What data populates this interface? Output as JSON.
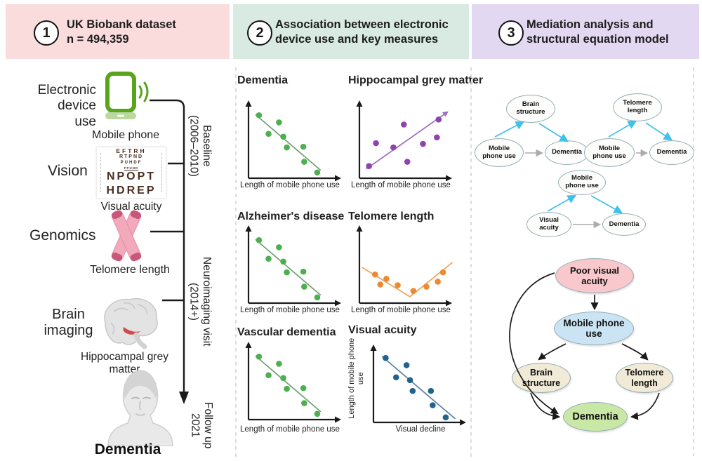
{
  "header": {
    "panels": [
      {
        "number": "1",
        "line1": "UK Biobank dataset",
        "line2": "n = 494,359",
        "bg": "#fbdcdc"
      },
      {
        "number": "2",
        "line1": "Association between electronic",
        "line2": "device use and key measures",
        "bg": "#d8eae1"
      },
      {
        "number": "3",
        "line1": "Mediation analysis and",
        "line2": "structural equation model",
        "bg": "#e3d8f2"
      }
    ]
  },
  "left_panel": {
    "electronic": {
      "label_lines": [
        "Electronic",
        "device",
        "use"
      ],
      "caption": "Mobile phone"
    },
    "vision": {
      "label": "Vision",
      "caption": "Visual acuity",
      "chart_rows": [
        "EFTRH",
        "RTPND",
        "PUHDF",
        "FPUND",
        "NPOPT",
        "HDREP"
      ]
    },
    "genomics": {
      "label": "Genomics",
      "caption": "Telomere length"
    },
    "brain": {
      "label_lines": [
        "Brain",
        "imaging"
      ],
      "caption": "Hippocampal grey matter"
    },
    "outcome": {
      "label": "Dementia"
    }
  },
  "timeline": {
    "baseline": {
      "line1": "Baseline",
      "line2": "(2006–2010)"
    },
    "neuroimaging": {
      "line1": "Neuroimaging visit",
      "line2": "(2014+)"
    },
    "followup": {
      "line1": "Follow up",
      "line2": "2021"
    }
  },
  "chart_data": [
    {
      "type": "scatter",
      "title": "Dementia",
      "xlabel": "Length of mobile phone use",
      "ylabel": "",
      "trend": "negative",
      "dot_color": "#4caf50",
      "line_color": "#6fa06f",
      "trend_arrow": false,
      "units": "schematic, relative 0-100",
      "x_range": [
        0,
        100
      ],
      "y_range": [
        0,
        100
      ],
      "points": [
        [
          12,
          88
        ],
        [
          35,
          78
        ],
        [
          23,
          62
        ],
        [
          40,
          58
        ],
        [
          44,
          43
        ],
        [
          63,
          44
        ],
        [
          64,
          23
        ],
        [
          79,
          8
        ]
      ],
      "trend_line": [
        [
          8,
          89
        ],
        [
          83,
          11
        ]
      ]
    },
    {
      "type": "scatter",
      "title": "Hippocampal grey matter",
      "xlabel": "Length of mobile phone use",
      "ylabel": "",
      "trend": "positive",
      "dot_color": "#8e44ad",
      "line_color": "#9d6bbf",
      "trend_arrow": true,
      "units": "schematic, relative 0-100",
      "x_range": [
        0,
        100
      ],
      "y_range": [
        0,
        100
      ],
      "points": [
        [
          11,
          17
        ],
        [
          19,
          49
        ],
        [
          39,
          43
        ],
        [
          51,
          75
        ],
        [
          55,
          23
        ],
        [
          73,
          48
        ],
        [
          89,
          57
        ],
        [
          91,
          82
        ]
      ],
      "trend_line": [
        [
          8,
          13
        ],
        [
          97,
          89
        ]
      ]
    },
    {
      "type": "scatter",
      "title": "Alzheimer's disease",
      "xlabel": "Length of mobile phone use",
      "ylabel": "",
      "trend": "negative",
      "dot_color": "#4caf50",
      "line_color": "#6fa06f",
      "trend_arrow": false,
      "units": "schematic, relative 0-100",
      "x_range": [
        0,
        100
      ],
      "y_range": [
        0,
        100
      ],
      "points": [
        [
          12,
          88
        ],
        [
          35,
          78
        ],
        [
          23,
          62
        ],
        [
          40,
          58
        ],
        [
          44,
          43
        ],
        [
          63,
          44
        ],
        [
          64,
          23
        ],
        [
          79,
          8
        ]
      ],
      "trend_line": [
        [
          8,
          89
        ],
        [
          83,
          11
        ]
      ]
    },
    {
      "type": "scatter",
      "title": "Telomere length",
      "xlabel": "Length of mobile phone use",
      "ylabel": "",
      "trend": "v-shaped",
      "dot_color": "#ec8a33",
      "line_color": "#f2a25a",
      "trend_arrow": false,
      "units": "schematic, relative 0-100",
      "x_range": [
        0,
        100
      ],
      "y_range": [
        0,
        100
      ],
      "points": [
        [
          18,
          40
        ],
        [
          24,
          26
        ],
        [
          31,
          34
        ],
        [
          44,
          25
        ],
        [
          62,
          17
        ],
        [
          77,
          23
        ],
        [
          90,
          30
        ],
        [
          96,
          43
        ]
      ],
      "trend_line": [
        [
          3,
          50
        ],
        [
          58,
          9
        ],
        [
          107,
          57
        ]
      ]
    },
    {
      "type": "scatter",
      "title": "Vascular dementia",
      "xlabel": "Length of mobile phone use",
      "ylabel": "",
      "trend": "negative",
      "dot_color": "#4caf50",
      "line_color": "#6fa06f",
      "trend_arrow": false,
      "units": "schematic, relative 0-100",
      "x_range": [
        0,
        100
      ],
      "y_range": [
        0,
        100
      ],
      "points": [
        [
          12,
          88
        ],
        [
          35,
          78
        ],
        [
          23,
          62
        ],
        [
          40,
          58
        ],
        [
          44,
          43
        ],
        [
          63,
          44
        ],
        [
          64,
          23
        ],
        [
          79,
          8
        ]
      ],
      "trend_line": [
        [
          8,
          89
        ],
        [
          83,
          11
        ]
      ]
    },
    {
      "type": "scatter",
      "title": "Visual acuity",
      "xlabel": "Visual decline",
      "ylabel": "Length of mobile phone use",
      "trend": "negative",
      "dot_color": "#20638f",
      "line_color": "#5c7fa3",
      "trend_arrow": false,
      "units": "schematic, relative 0-100",
      "x_range": [
        0,
        100
      ],
      "y_range": [
        0,
        100
      ],
      "points": [
        [
          14,
          90
        ],
        [
          38,
          80
        ],
        [
          26,
          63
        ],
        [
          42,
          59
        ],
        [
          45,
          44
        ],
        [
          66,
          44
        ],
        [
          68,
          24
        ],
        [
          83,
          7
        ]
      ],
      "trend_line": [
        [
          10,
          92
        ],
        [
          94,
          5
        ]
      ]
    }
  ],
  "sem": {
    "diagram_brain": {
      "top": "Brain structure",
      "left": "Mobile phone use",
      "right": "Dementia"
    },
    "diagram_telomere": {
      "top": "Telomere length",
      "left": "Mobile phone use",
      "right": "Dementia"
    },
    "diagram_visual": {
      "top": "Mobile phone use",
      "left": "Visual acuity",
      "right": "Dementia"
    }
  },
  "flow": {
    "nodes": [
      {
        "label": "Poor visual acuity",
        "fill": "#f8c8cc"
      },
      {
        "label": "Mobile phone use",
        "fill": "#cbe4f4"
      },
      {
        "label": "Brain structure",
        "fill": "#f0ead6"
      },
      {
        "label": "Telomere length",
        "fill": "#f0ead6"
      },
      {
        "label": "Dementia",
        "fill": "#c9e7a5"
      }
    ]
  },
  "colors": {
    "timeline": "#1a1a1a",
    "blue_arrow": "#3fc1e9",
    "grey_arrow": "#ababab",
    "black_arrow": "#1a1a1a",
    "divider": "#d4d4d4"
  }
}
